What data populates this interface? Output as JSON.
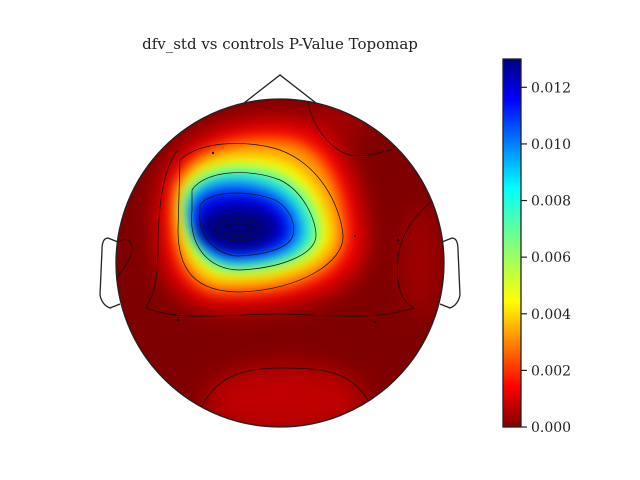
{
  "chart_data": {
    "type": "heatmap",
    "subtype": "topomap",
    "title": "dfv_std vs controls P-Value Topomap",
    "colormap": "jet",
    "colorbar": {
      "vmin": 0.0,
      "vmax": 0.013,
      "ticks": [
        0.0,
        0.002,
        0.004,
        0.006,
        0.008,
        0.01,
        0.012
      ],
      "tick_labels": [
        "0.000",
        "0.002",
        "0.004",
        "0.006",
        "0.008",
        "0.010",
        "0.012"
      ]
    },
    "minimum_region": {
      "location": "left-frontal-central",
      "value": 0.013
    },
    "contour_levels": [
      0.002,
      0.004,
      0.008,
      0.012
    ],
    "grid": false,
    "legend": "none"
  }
}
